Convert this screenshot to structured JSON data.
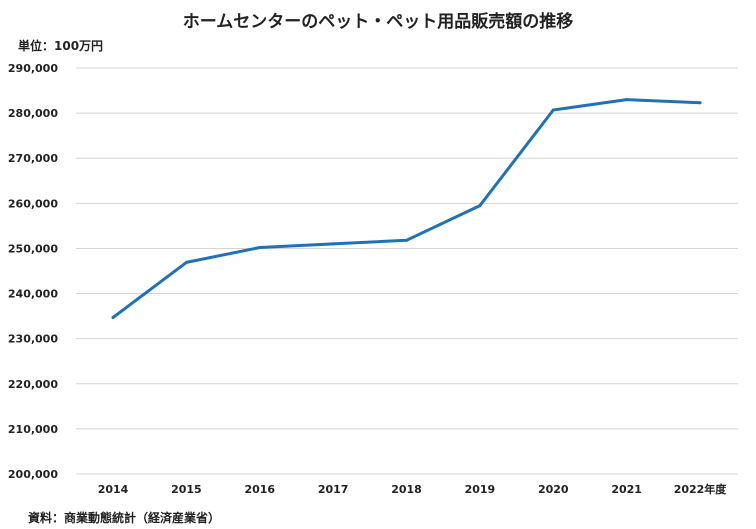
{
  "chart_data": {
    "type": "line",
    "title": "ホームセンターのペット・ペット用品販売額の推移",
    "unit_label": "単位：100万円",
    "source": "資料：商業動態統計（経済産業省）",
    "categories": [
      "2014",
      "2015",
      "2016",
      "2017",
      "2018",
      "2019",
      "2020",
      "2021",
      "2022年度"
    ],
    "series": [
      {
        "values": [
          234700,
          246900,
          250200,
          251000,
          251800,
          259500,
          280700,
          283000,
          282300
        ]
      }
    ],
    "ylim": [
      200000,
      290000
    ],
    "yticks": [
      200000,
      210000,
      220000,
      230000,
      240000,
      250000,
      260000,
      270000,
      280000,
      290000
    ],
    "ytick_labels": [
      "200,000",
      "210,000",
      "220,000",
      "230,000",
      "240,000",
      "250,000",
      "260,000",
      "270,000",
      "280,000",
      "290,000"
    ],
    "grid": true,
    "legend": false,
    "line_color": "#1f72b8"
  }
}
